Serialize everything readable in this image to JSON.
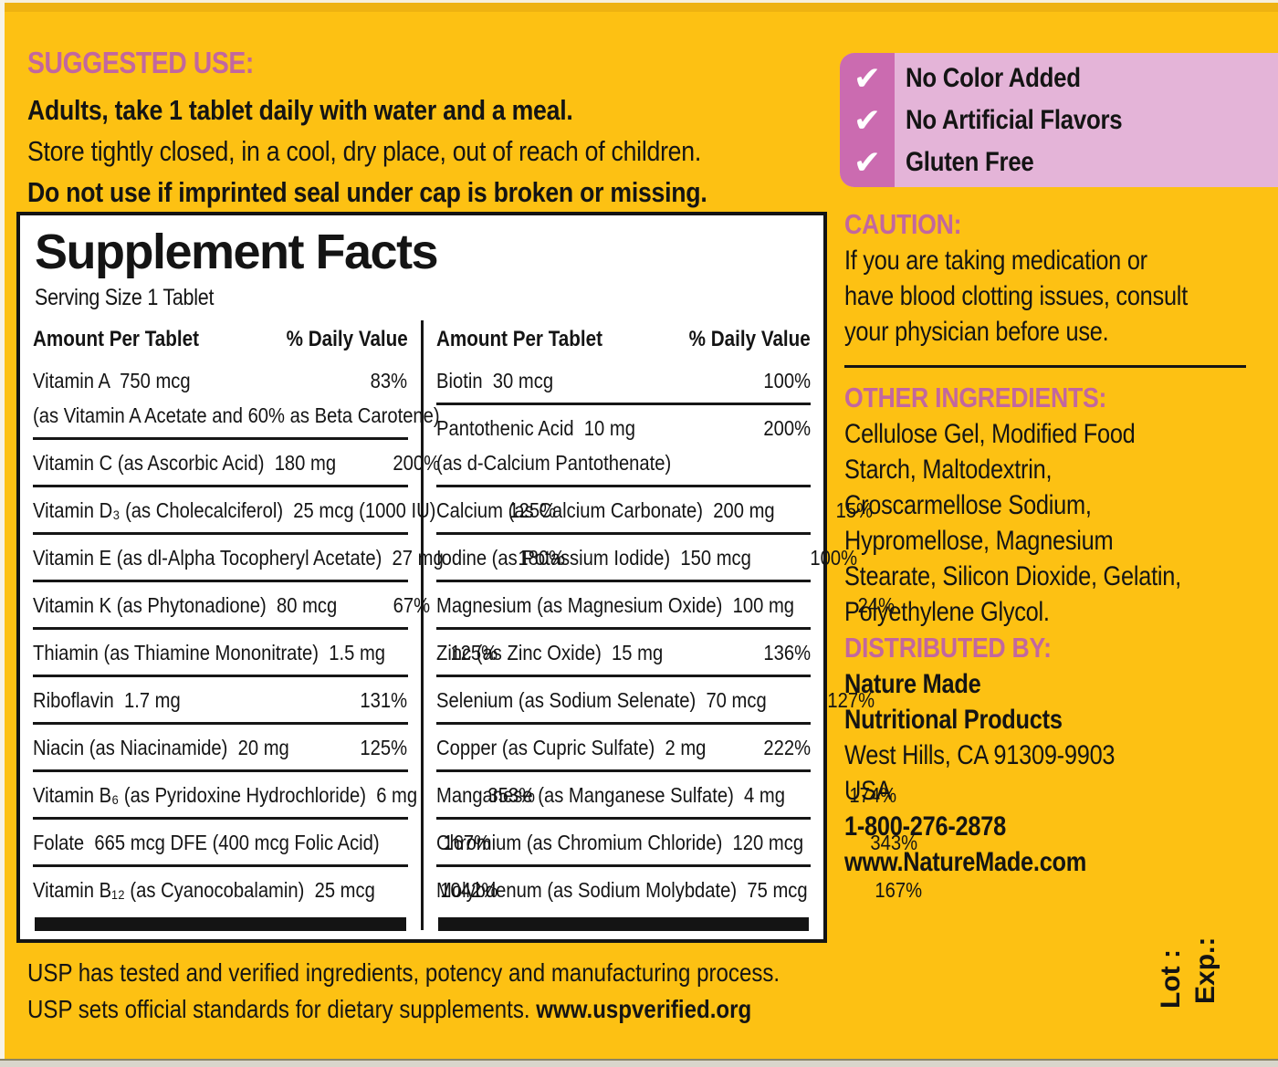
{
  "colors": {
    "background": "#fdc113",
    "heading_pink": "#c2679f",
    "claims_bg": "#e4b4d8",
    "claims_tab": "#cb6bb0",
    "text": "#141414",
    "panel_bg": "#ffffff"
  },
  "suggested_use": {
    "heading": "SUGGESTED USE:",
    "line1": "Adults, take 1 tablet daily with water and a meal.",
    "line2": "Store tightly closed, in a cool, dry place, out of reach of children.",
    "line3": "Do not use if imprinted seal under cap is broken or missing."
  },
  "claims": {
    "check_icon": "✔",
    "items": [
      "No Color Added",
      "No Artificial Flavors",
      "Gluten Free"
    ]
  },
  "facts": {
    "title": "Supplement Facts",
    "serving": "Serving Size 1 Tablet",
    "amount_header": "Amount Per Tablet",
    "dv_header": "% Daily Value",
    "left_rows": [
      {
        "name": "Vitamin A  750 mcg",
        "dv": "83%",
        "sub": "(as Vitamin A Acetate and 60% as Beta Carotene)"
      },
      {
        "name": "Vitamin C (as Ascorbic Acid)  180 mg",
        "dv": "200%"
      },
      {
        "name": "Vitamin D₃ (as Cholecalciferol)  25 mcg (1000 IU)",
        "dv": "125%"
      },
      {
        "name": "Vitamin E (as dl-Alpha Tocopheryl Acetate)  27 mg",
        "dv": "180%"
      },
      {
        "name": "Vitamin K (as Phytonadione)  80 mcg",
        "dv": "67%"
      },
      {
        "name": "Thiamin (as Thiamine Mononitrate)  1.5 mg",
        "dv": "125%"
      },
      {
        "name": "Riboflavin  1.7 mg",
        "dv": "131%"
      },
      {
        "name": "Niacin (as Niacinamide)  20 mg",
        "dv": "125%"
      },
      {
        "name": "Vitamin B₆ (as Pyridoxine Hydrochloride)  6 mg",
        "dv": "353%"
      },
      {
        "name": "Folate  665 mcg DFE (400 mcg Folic Acid)",
        "dv": "167%"
      },
      {
        "name": "Vitamin B₁₂ (as Cyanocobalamin)  25 mcg",
        "dv": "1042%"
      }
    ],
    "right_rows": [
      {
        "name": "Biotin  30 mcg",
        "dv": "100%"
      },
      {
        "name": "Pantothenic Acid  10 mg",
        "dv": "200%",
        "sub": "(as d-Calcium Pantothenate)"
      },
      {
        "name": "Calcium (as Calcium Carbonate)  200 mg",
        "dv": "15%"
      },
      {
        "name": "Iodine (as Potassium Iodide)  150 mcg",
        "dv": "100%"
      },
      {
        "name": "Magnesium (as Magnesium Oxide)  100 mg",
        "dv": "24%"
      },
      {
        "name": "Zinc (as Zinc Oxide)  15 mg",
        "dv": "136%"
      },
      {
        "name": "Selenium (as Sodium Selenate)  70 mcg",
        "dv": "127%"
      },
      {
        "name": "Copper (as Cupric Sulfate)  2 mg",
        "dv": "222%"
      },
      {
        "name": "Manganese (as Manganese Sulfate)  4 mg",
        "dv": "174%"
      },
      {
        "name": "Chromium (as Chromium Chloride)  120 mcg",
        "dv": "343%"
      },
      {
        "name": "Molybdenum (as Sodium Molybdate)  75 mcg",
        "dv": "167%"
      }
    ]
  },
  "caution": {
    "heading": "CAUTION:",
    "lines": [
      "If you are taking medication or",
      "have blood clotting issues, consult",
      "your physician before use."
    ]
  },
  "other_ingredients": {
    "heading": "OTHER INGREDIENTS:",
    "lines": [
      "Cellulose Gel, Modified Food",
      "Starch, Maltodextrin,",
      "Croscarmellose Sodium,",
      "Hypromellose, Magnesium",
      "Stearate, Silicon Dioxide, Gelatin,",
      "Polyethylene Glycol."
    ]
  },
  "distributed_by": {
    "heading": "DISTRIBUTED BY:",
    "name1": "Nature Made",
    "name2": "Nutritional Products",
    "addr1": "West Hills, CA 91309-9903",
    "addr2": "USA",
    "phone": "1-800-276-2878",
    "website": "www.NatureMade.com"
  },
  "usp": {
    "line1": "USP has tested and verified ingredients, potency and manufacturing process.",
    "line2_prefix": "USP sets official standards for dietary supplements. ",
    "line2_bold": "www.uspverified.org"
  },
  "lot_exp": {
    "lot": "Lot :",
    "exp": "Exp.:"
  }
}
